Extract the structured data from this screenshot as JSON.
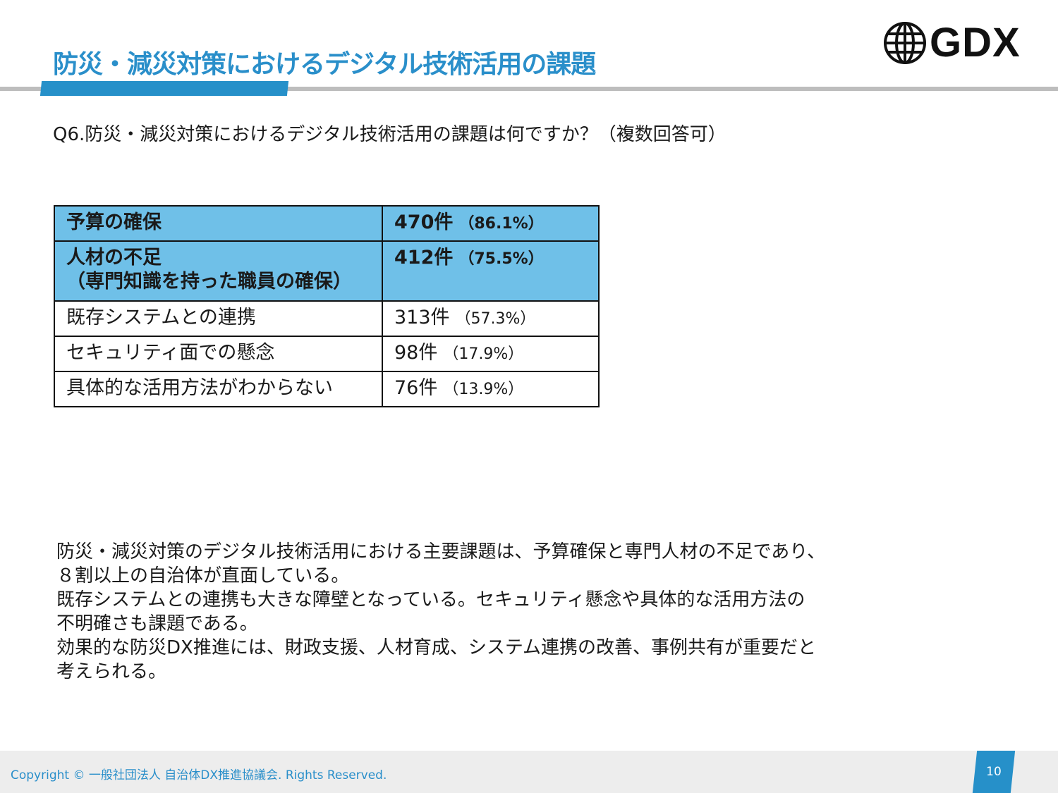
{
  "header": {
    "title": "防災・減災対策におけるデジタル技術活用の課題",
    "logo_text": "GDX"
  },
  "question": "Q6.防災・減災対策におけるデジタル技術活用の課題は何ですか？（複数回答可）",
  "table": {
    "rows": [
      {
        "label": "予算の確保",
        "count": "470件",
        "pct": "（86.1%）",
        "highlight": true
      },
      {
        "label": "人材の不足\n（専門知識を持った職員の確保）",
        "count": "412件",
        "pct": "（75.5%）",
        "highlight": true
      },
      {
        "label": "既存システムとの連携",
        "count": "313件",
        "pct": "（57.3%）",
        "highlight": false
      },
      {
        "label": "セキュリティ面での懸念",
        "count": "98件",
        "pct": "（17.9%）",
        "highlight": false
      },
      {
        "label": "具体的な活用方法がわからない",
        "count": "76件",
        "pct": "（13.9%）",
        "highlight": false
      }
    ],
    "highlight_color": "#6fc0e8"
  },
  "summary": {
    "lines": [
      "防災・減災対策のデジタル技術活用における主要課題は、予算確保と専門人材の不足であり、",
      "８割以上の自治体が直面している。",
      "既存システムとの連携も大きな障壁となっている。セキュリティ懸念や具体的な活用方法の",
      "不明確さも課題である。",
      "効果的な防災DX推進には、財政支援、人材育成、システム連携の改善、事例共有が重要だと",
      "考えられる。"
    ]
  },
  "footer": {
    "copyright": "Copyright © 一般社団法人 自治体DX推進協議会. Rights Reserved.",
    "page": "10"
  },
  "colors": {
    "accent": "#2690c9"
  }
}
